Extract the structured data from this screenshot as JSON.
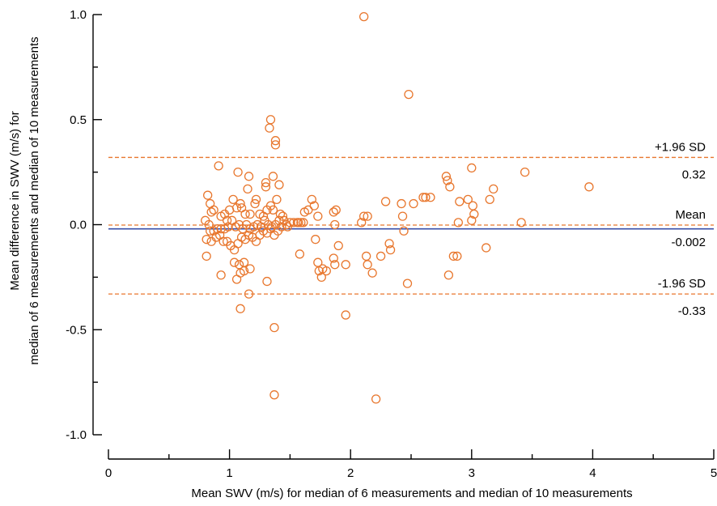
{
  "chart_data": {
    "type": "scatter",
    "title": "",
    "xlabel": "Mean SWV (m/s) for median of 6 measurements and median of 10 measurements",
    "ylabel_line1": "Mean difference in SWV (m/s) for",
    "ylabel_line2": "median of 6 measurements and median of 10 measurements",
    "xlim": [
      0,
      5
    ],
    "ylim": [
      -1.0,
      1.0
    ],
    "x_ticks": [
      0,
      1,
      2,
      3,
      4,
      5
    ],
    "x_tick_labels": [
      "0",
      "1",
      "2",
      "3",
      "4",
      "5"
    ],
    "y_ticks": [
      -1.0,
      -0.5,
      0.0,
      0.5,
      1.0
    ],
    "y_tick_labels": [
      "-1.0",
      "-0.5",
      "0.0",
      "0.5",
      "1.0"
    ],
    "grid": false,
    "colors": {
      "points": "#e8772e",
      "reference": "#e8772e",
      "mean_line": "#3a4fa8",
      "axis": "#000000"
    },
    "reference_lines": [
      {
        "name": "+1.96 SD",
        "value": 0.32,
        "value_label": "0.32",
        "style": "dashed"
      },
      {
        "name": "Mean",
        "value": -0.002,
        "value_label": "-0.002",
        "style": "dashed"
      },
      {
        "name": "-1.96 SD",
        "value": -0.33,
        "value_label": "-0.33",
        "style": "dashed"
      }
    ],
    "mean_solid_line": -0.02,
    "points": [
      [
        2.11,
        0.99
      ],
      [
        2.48,
        0.62
      ],
      [
        1.34,
        0.5
      ],
      [
        1.33,
        0.46
      ],
      [
        1.38,
        0.4
      ],
      [
        1.38,
        0.38
      ],
      [
        0.91,
        0.28
      ],
      [
        1.07,
        0.25
      ],
      [
        1.16,
        0.23
      ],
      [
        1.36,
        0.23
      ],
      [
        1.41,
        0.19
      ],
      [
        1.3,
        0.2
      ],
      [
        1.3,
        0.18
      ],
      [
        1.15,
        0.17
      ],
      [
        0.82,
        0.14
      ],
      [
        0.84,
        0.1
      ],
      [
        0.87,
        0.07
      ],
      [
        0.85,
        0.06
      ],
      [
        0.8,
        0.02
      ],
      [
        0.83,
        0.0
      ],
      [
        0.93,
        0.04
      ],
      [
        0.96,
        0.05
      ],
      [
        0.98,
        0.02
      ],
      [
        1.0,
        0.07
      ],
      [
        1.03,
        0.12
      ],
      [
        1.06,
        0.08
      ],
      [
        1.09,
        0.1
      ],
      [
        1.1,
        0.08
      ],
      [
        1.13,
        0.05
      ],
      [
        1.17,
        0.05
      ],
      [
        1.21,
        0.1
      ],
      [
        1.22,
        0.12
      ],
      [
        1.25,
        0.05
      ],
      [
        1.28,
        0.04
      ],
      [
        1.31,
        0.07
      ],
      [
        1.34,
        0.09
      ],
      [
        1.36,
        0.07
      ],
      [
        1.39,
        0.12
      ],
      [
        1.42,
        0.05
      ],
      [
        1.45,
        0.02
      ],
      [
        1.47,
        0.0
      ],
      [
        1.5,
        0.01
      ],
      [
        1.53,
        0.01
      ],
      [
        1.56,
        0.01
      ],
      [
        1.59,
        0.01
      ],
      [
        1.62,
        0.06
      ],
      [
        1.65,
        0.07
      ],
      [
        1.68,
        0.12
      ],
      [
        1.7,
        0.09
      ],
      [
        1.73,
        0.04
      ],
      [
        1.61,
        0.01
      ],
      [
        1.57,
        0.01
      ],
      [
        1.44,
        0.04
      ],
      [
        1.41,
        0.02
      ],
      [
        1.38,
        0.0
      ],
      [
        1.35,
        -0.01
      ],
      [
        1.32,
        0.0
      ],
      [
        1.29,
        0.02
      ],
      [
        1.26,
        -0.01
      ],
      [
        1.23,
        0.0
      ],
      [
        1.2,
        -0.01
      ],
      [
        1.17,
        -0.02
      ],
      [
        1.14,
        0.0
      ],
      [
        1.11,
        -0.02
      ],
      [
        1.08,
        0.0
      ],
      [
        1.05,
        -0.01
      ],
      [
        1.02,
        0.02
      ],
      [
        0.99,
        -0.01
      ],
      [
        0.96,
        -0.02
      ],
      [
        0.93,
        -0.02
      ],
      [
        0.9,
        -0.02
      ],
      [
        0.87,
        -0.03
      ],
      [
        0.84,
        -0.03
      ],
      [
        0.81,
        -0.07
      ],
      [
        0.85,
        -0.08
      ],
      [
        0.89,
        -0.06
      ],
      [
        0.92,
        -0.05
      ],
      [
        0.95,
        -0.08
      ],
      [
        0.98,
        -0.08
      ],
      [
        1.01,
        -0.1
      ],
      [
        1.04,
        -0.12
      ],
      [
        1.07,
        -0.09
      ],
      [
        1.1,
        -0.06
      ],
      [
        1.13,
        -0.07
      ],
      [
        1.16,
        -0.05
      ],
      [
        1.19,
        -0.06
      ],
      [
        1.22,
        -0.08
      ],
      [
        1.25,
        -0.05
      ],
      [
        1.28,
        -0.03
      ],
      [
        1.31,
        -0.04
      ],
      [
        1.34,
        -0.02
      ],
      [
        1.37,
        -0.05
      ],
      [
        1.4,
        -0.03
      ],
      [
        1.43,
        -0.01
      ],
      [
        1.48,
        -0.01
      ],
      [
        0.81,
        -0.15
      ],
      [
        1.04,
        -0.18
      ],
      [
        1.08,
        -0.19
      ],
      [
        1.12,
        -0.18
      ],
      [
        1.17,
        -0.21
      ],
      [
        1.09,
        -0.23
      ],
      [
        1.12,
        -0.22
      ],
      [
        0.93,
        -0.24
      ],
      [
        1.06,
        -0.26
      ],
      [
        1.31,
        -0.27
      ],
      [
        1.16,
        -0.33
      ],
      [
        1.09,
        -0.4
      ],
      [
        1.37,
        -0.49
      ],
      [
        1.37,
        -0.81
      ],
      [
        1.58,
        -0.14
      ],
      [
        1.71,
        -0.07
      ],
      [
        1.73,
        -0.18
      ],
      [
        1.74,
        -0.22
      ],
      [
        1.76,
        -0.25
      ],
      [
        1.77,
        -0.21
      ],
      [
        1.8,
        -0.22
      ],
      [
        1.86,
        -0.16
      ],
      [
        1.87,
        -0.19
      ],
      [
        1.88,
        0.07
      ],
      [
        1.87,
        0.0
      ],
      [
        1.86,
        0.06
      ],
      [
        1.9,
        -0.1
      ],
      [
        1.96,
        -0.19
      ],
      [
        1.96,
        -0.43
      ],
      [
        2.09,
        0.01
      ],
      [
        2.11,
        0.04
      ],
      [
        2.14,
        0.04
      ],
      [
        2.13,
        -0.15
      ],
      [
        2.14,
        -0.19
      ],
      [
        2.18,
        -0.23
      ],
      [
        2.21,
        -0.83
      ],
      [
        2.25,
        -0.15
      ],
      [
        2.29,
        0.11
      ],
      [
        2.32,
        -0.09
      ],
      [
        2.33,
        -0.12
      ],
      [
        2.42,
        0.1
      ],
      [
        2.43,
        0.04
      ],
      [
        2.44,
        -0.03
      ],
      [
        2.47,
        -0.28
      ],
      [
        2.52,
        0.1
      ],
      [
        2.6,
        0.13
      ],
      [
        2.62,
        0.13
      ],
      [
        2.66,
        0.13
      ],
      [
        2.79,
        0.23
      ],
      [
        2.8,
        0.21
      ],
      [
        2.82,
        0.18
      ],
      [
        2.81,
        -0.24
      ],
      [
        2.85,
        -0.15
      ],
      [
        2.88,
        -0.15
      ],
      [
        2.89,
        0.01
      ],
      [
        2.9,
        0.11
      ],
      [
        2.97,
        0.12
      ],
      [
        3.0,
        0.02
      ],
      [
        3.02,
        0.05
      ],
      [
        3.01,
        0.09
      ],
      [
        3.0,
        0.27
      ],
      [
        3.12,
        -0.11
      ],
      [
        3.15,
        0.12
      ],
      [
        3.18,
        0.17
      ],
      [
        3.41,
        0.01
      ],
      [
        3.44,
        0.25
      ],
      [
        3.97,
        0.18
      ]
    ]
  }
}
